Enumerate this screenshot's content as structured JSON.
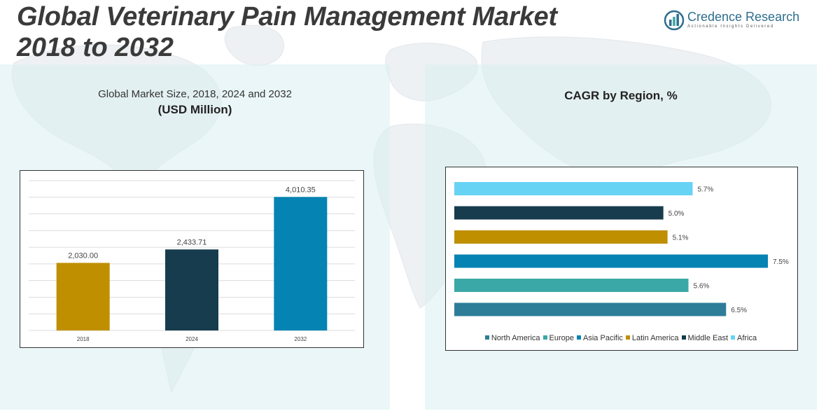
{
  "header": {
    "title_line1": "Global Veterinary Pain Management Market",
    "title_line2": "2018 to 2032"
  },
  "logo": {
    "name": "Credence Research",
    "tagline": "Actionable Insights Delivered",
    "icon": "bar-chart-globe-icon"
  },
  "left_panel": {
    "subtitle": "Global Market Size, 2018, 2024 and 2032",
    "unit": "(USD Million)"
  },
  "right_panel": {
    "title": "CAGR by Region, %"
  },
  "colors": {
    "title": "#3a3a3a",
    "panel": "#dcf0f2",
    "bar_2018": "#bf8f00",
    "bar_2024": "#173c4d",
    "bar_2032": "#0583b2",
    "north_america": "#2e7d98",
    "europe": "#3aa8a6",
    "asia_pacific": "#0583b2",
    "latin_america": "#bf8f00",
    "middle_east": "#173c4d",
    "africa": "#66d3f5"
  },
  "chart_data": [
    {
      "type": "bar",
      "title": "Global Market Size, 2018, 2024 and 2032",
      "ylabel": "USD Million",
      "categories": [
        "2018",
        "2024",
        "2032"
      ],
      "values": [
        2030.0,
        2433.71,
        4010.35
      ],
      "labels": [
        "2,030.00",
        "2,433.71",
        "4,010.35"
      ],
      "ylim": [
        0,
        4500
      ],
      "grid": true
    },
    {
      "type": "bar",
      "orientation": "horizontal",
      "title": "CAGR by Region, %",
      "categories": [
        "Africa",
        "Middle East",
        "Latin America",
        "Asia Pacific",
        "Europe",
        "North America"
      ],
      "values": [
        5.7,
        5.0,
        5.1,
        7.5,
        5.6,
        6.5
      ],
      "labels": [
        "5.7%",
        "5.0%",
        "5.1%",
        "7.5%",
        "5.6%",
        "6.5%"
      ],
      "xlim": [
        0,
        7.5
      ],
      "legend": [
        "North America",
        "Europe",
        "Asia Pacific",
        "Latin America",
        "Middle East",
        "Africa"
      ],
      "legend_position": "bottom"
    }
  ]
}
